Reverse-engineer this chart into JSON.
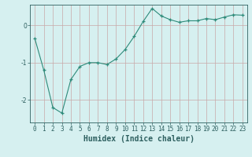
{
  "xlabel": "Humidex (Indice chaleur)",
  "ylabel": "",
  "x": [
    0,
    1,
    2,
    3,
    4,
    5,
    6,
    7,
    8,
    9,
    10,
    11,
    12,
    13,
    14,
    15,
    16,
    17,
    18,
    19,
    20,
    21,
    22,
    23
  ],
  "y": [
    -0.35,
    -1.2,
    -2.2,
    -2.35,
    -1.45,
    -1.1,
    -1.0,
    -1.0,
    -1.05,
    -0.9,
    -0.65,
    -0.3,
    0.1,
    0.45,
    0.25,
    0.15,
    0.08,
    0.12,
    0.12,
    0.18,
    0.15,
    0.22,
    0.28,
    0.27
  ],
  "line_color": "#2e8b7a",
  "marker": "+",
  "marker_size": 3,
  "bg_color": "#d6f0f0",
  "grid_color": "#c8a8a8",
  "axis_color": "#2e6060",
  "tick_color": "#2e6060",
  "ylim": [
    -2.6,
    0.55
  ],
  "xlim": [
    -0.5,
    23.5
  ],
  "yticks": [
    -2,
    -1,
    0
  ],
  "xticks": [
    0,
    1,
    2,
    3,
    4,
    5,
    6,
    7,
    8,
    9,
    10,
    11,
    12,
    13,
    14,
    15,
    16,
    17,
    18,
    19,
    20,
    21,
    22,
    23
  ],
  "label_fontsize": 7,
  "tick_fontsize": 5.5
}
